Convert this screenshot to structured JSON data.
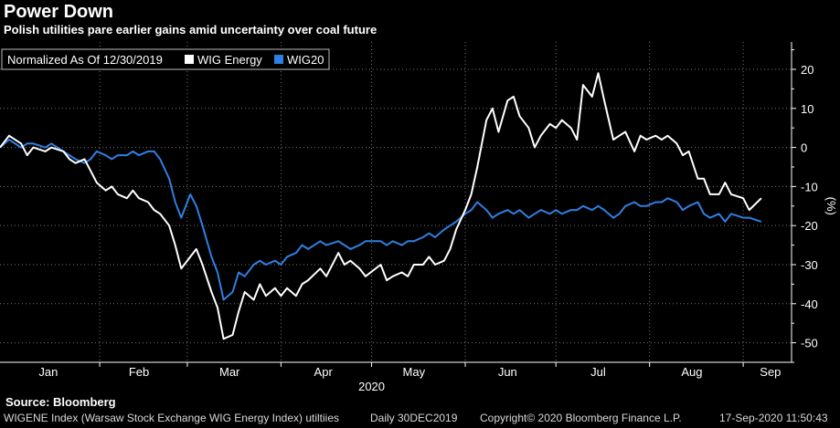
{
  "header": {
    "title": "Power Down",
    "subtitle": "Polish utilities pare earlier gains amid uncertainty over coal future"
  },
  "source": "Source: Bloomberg",
  "footer": {
    "description": "WIGENE Index (Warsaw Stock Exchange WIG Energy Index) utiltiies",
    "frequency": "Daily 30DEC2019",
    "copyright": "Copyright© 2020 Bloomberg Finance L.P.",
    "timestamp": "17-Sep-2020 11:50:43"
  },
  "colors": {
    "background": "#000000",
    "wig_energy": "#ffffff",
    "wig20": "#2f7fe0",
    "grid": "#777777"
  },
  "chart_data": {
    "type": "line",
    "title": "Power Down",
    "subtitle": "Polish utilities pare earlier gains amid uncertainty over coal future",
    "legend": {
      "header": "Normalized As Of 12/30/2019",
      "placement": "top-left"
    },
    "xlabel": "2020",
    "ylabel": "(%)",
    "y_axis_side": "right",
    "ylim": [
      -55,
      27
    ],
    "yticks": [
      20,
      10,
      0,
      -10,
      -20,
      -30,
      -40,
      -50
    ],
    "x_domain": [
      "2019-12-30",
      "2020-09-17"
    ],
    "x_ticks": [
      {
        "label": "Jan",
        "date": "2020-01-15"
      },
      {
        "label": "Feb",
        "date": "2020-02-14"
      },
      {
        "label": "Mar",
        "date": "2020-03-15"
      },
      {
        "label": "Apr",
        "date": "2020-04-15"
      },
      {
        "label": "May",
        "date": "2020-05-15"
      },
      {
        "label": "Jun",
        "date": "2020-06-15"
      },
      {
        "label": "Jul",
        "date": "2020-07-15"
      },
      {
        "label": "Aug",
        "date": "2020-08-15"
      },
      {
        "label": "Sep",
        "date": "2020-09-10"
      }
    ],
    "x_gridlines": [
      "2020-02-01",
      "2020-03-01",
      "2020-04-01",
      "2020-05-01",
      "2020-06-01",
      "2020-07-01",
      "2020-08-01",
      "2020-09-01"
    ],
    "grid": true,
    "series": [
      {
        "name": "WIG Energy",
        "color": "#ffffff",
        "points": [
          [
            "2019-12-30",
            0
          ],
          [
            "2020-01-02",
            3
          ],
          [
            "2020-01-06",
            1
          ],
          [
            "2020-01-08",
            -2
          ],
          [
            "2020-01-10",
            0
          ],
          [
            "2020-01-14",
            -1
          ],
          [
            "2020-01-16",
            0
          ],
          [
            "2020-01-20",
            -1
          ],
          [
            "2020-01-22",
            -3
          ],
          [
            "2020-01-24",
            -4
          ],
          [
            "2020-01-27",
            -3
          ],
          [
            "2020-01-29",
            -6
          ],
          [
            "2020-01-31",
            -9
          ],
          [
            "2020-02-03",
            -11
          ],
          [
            "2020-02-05",
            -10
          ],
          [
            "2020-02-07",
            -12
          ],
          [
            "2020-02-10",
            -13
          ],
          [
            "2020-02-12",
            -11
          ],
          [
            "2020-02-14",
            -13
          ],
          [
            "2020-02-17",
            -14
          ],
          [
            "2020-02-19",
            -16
          ],
          [
            "2020-02-21",
            -17
          ],
          [
            "2020-02-24",
            -20
          ],
          [
            "2020-02-26",
            -25
          ],
          [
            "2020-02-28",
            -31
          ],
          [
            "2020-03-02",
            -28
          ],
          [
            "2020-03-04",
            -26
          ],
          [
            "2020-03-06",
            -30
          ],
          [
            "2020-03-09",
            -37
          ],
          [
            "2020-03-11",
            -41
          ],
          [
            "2020-03-13",
            -49
          ],
          [
            "2020-03-16",
            -48
          ],
          [
            "2020-03-18",
            -42
          ],
          [
            "2020-03-20",
            -37
          ],
          [
            "2020-03-23",
            -39
          ],
          [
            "2020-03-25",
            -35
          ],
          [
            "2020-03-27",
            -38
          ],
          [
            "2020-03-30",
            -36
          ],
          [
            "2020-04-01",
            -38
          ],
          [
            "2020-04-03",
            -36
          ],
          [
            "2020-04-06",
            -38
          ],
          [
            "2020-04-08",
            -35
          ],
          [
            "2020-04-10",
            -34
          ],
          [
            "2020-04-14",
            -31
          ],
          [
            "2020-04-16",
            -33
          ],
          [
            "2020-04-20",
            -27
          ],
          [
            "2020-04-22",
            -30
          ],
          [
            "2020-04-24",
            -29
          ],
          [
            "2020-04-27",
            -31
          ],
          [
            "2020-04-29",
            -33
          ],
          [
            "2020-05-04",
            -30
          ],
          [
            "2020-05-06",
            -34
          ],
          [
            "2020-05-08",
            -33
          ],
          [
            "2020-05-11",
            -32
          ],
          [
            "2020-05-13",
            -33
          ],
          [
            "2020-05-15",
            -30
          ],
          [
            "2020-05-18",
            -30
          ],
          [
            "2020-05-20",
            -28
          ],
          [
            "2020-05-22",
            -30
          ],
          [
            "2020-05-25",
            -29
          ],
          [
            "2020-05-27",
            -26
          ],
          [
            "2020-05-29",
            -21
          ],
          [
            "2020-06-01",
            -16
          ],
          [
            "2020-06-03",
            -12
          ],
          [
            "2020-06-05",
            -5
          ],
          [
            "2020-06-08",
            7
          ],
          [
            "2020-06-10",
            10
          ],
          [
            "2020-06-12",
            4
          ],
          [
            "2020-06-15",
            12
          ],
          [
            "2020-06-17",
            13
          ],
          [
            "2020-06-19",
            8
          ],
          [
            "2020-06-22",
            5
          ],
          [
            "2020-06-24",
            0
          ],
          [
            "2020-06-26",
            3
          ],
          [
            "2020-06-29",
            6
          ],
          [
            "2020-07-01",
            5
          ],
          [
            "2020-07-03",
            7
          ],
          [
            "2020-07-06",
            5
          ],
          [
            "2020-07-08",
            2
          ],
          [
            "2020-07-10",
            16
          ],
          [
            "2020-07-13",
            13
          ],
          [
            "2020-07-15",
            19
          ],
          [
            "2020-07-17",
            12
          ],
          [
            "2020-07-20",
            2
          ],
          [
            "2020-07-22",
            3
          ],
          [
            "2020-07-24",
            4
          ],
          [
            "2020-07-27",
            -1
          ],
          [
            "2020-07-29",
            3
          ],
          [
            "2020-07-31",
            2
          ],
          [
            "2020-08-03",
            3
          ],
          [
            "2020-08-05",
            2
          ],
          [
            "2020-08-07",
            3
          ],
          [
            "2020-08-10",
            1
          ],
          [
            "2020-08-12",
            -2
          ],
          [
            "2020-08-14",
            -1
          ],
          [
            "2020-08-17",
            -8
          ],
          [
            "2020-08-19",
            -8
          ],
          [
            "2020-08-21",
            -12
          ],
          [
            "2020-08-24",
            -12
          ],
          [
            "2020-08-26",
            -9
          ],
          [
            "2020-08-28",
            -12
          ],
          [
            "2020-09-01",
            -13
          ],
          [
            "2020-09-03",
            -16
          ],
          [
            "2020-09-07",
            -13
          ]
        ]
      },
      {
        "name": "WIG20",
        "color": "#2f7fe0",
        "points": [
          [
            "2019-12-30",
            0
          ],
          [
            "2020-01-02",
            2
          ],
          [
            "2020-01-06",
            0
          ],
          [
            "2020-01-08",
            1
          ],
          [
            "2020-01-10",
            1
          ],
          [
            "2020-01-14",
            0
          ],
          [
            "2020-01-16",
            1
          ],
          [
            "2020-01-20",
            -1
          ],
          [
            "2020-01-22",
            -2
          ],
          [
            "2020-01-24",
            -3
          ],
          [
            "2020-01-27",
            -4
          ],
          [
            "2020-01-29",
            -3
          ],
          [
            "2020-01-31",
            -1
          ],
          [
            "2020-02-03",
            -2
          ],
          [
            "2020-02-05",
            -3
          ],
          [
            "2020-02-07",
            -2
          ],
          [
            "2020-02-10",
            -2
          ],
          [
            "2020-02-12",
            -1
          ],
          [
            "2020-02-14",
            -2
          ],
          [
            "2020-02-17",
            -1
          ],
          [
            "2020-02-19",
            -1
          ],
          [
            "2020-02-21",
            -3
          ],
          [
            "2020-02-24",
            -8
          ],
          [
            "2020-02-26",
            -14
          ],
          [
            "2020-02-28",
            -18
          ],
          [
            "2020-03-02",
            -12
          ],
          [
            "2020-03-04",
            -15
          ],
          [
            "2020-03-06",
            -20
          ],
          [
            "2020-03-09",
            -28
          ],
          [
            "2020-03-11",
            -32
          ],
          [
            "2020-03-13",
            -39
          ],
          [
            "2020-03-16",
            -37
          ],
          [
            "2020-03-18",
            -32
          ],
          [
            "2020-03-20",
            -33
          ],
          [
            "2020-03-23",
            -30
          ],
          [
            "2020-03-25",
            -29
          ],
          [
            "2020-03-27",
            -30
          ],
          [
            "2020-03-30",
            -29
          ],
          [
            "2020-04-01",
            -30
          ],
          [
            "2020-04-03",
            -28
          ],
          [
            "2020-04-06",
            -27
          ],
          [
            "2020-04-08",
            -25
          ],
          [
            "2020-04-10",
            -26
          ],
          [
            "2020-04-14",
            -24
          ],
          [
            "2020-04-16",
            -25
          ],
          [
            "2020-04-20",
            -24
          ],
          [
            "2020-04-22",
            -25
          ],
          [
            "2020-04-24",
            -26
          ],
          [
            "2020-04-27",
            -25
          ],
          [
            "2020-04-29",
            -24
          ],
          [
            "2020-05-04",
            -24
          ],
          [
            "2020-05-06",
            -25
          ],
          [
            "2020-05-08",
            -24
          ],
          [
            "2020-05-11",
            -25
          ],
          [
            "2020-05-13",
            -24
          ],
          [
            "2020-05-15",
            -24
          ],
          [
            "2020-05-18",
            -23
          ],
          [
            "2020-05-20",
            -22
          ],
          [
            "2020-05-22",
            -23
          ],
          [
            "2020-05-25",
            -21
          ],
          [
            "2020-05-27",
            -20
          ],
          [
            "2020-05-29",
            -19
          ],
          [
            "2020-06-01",
            -17
          ],
          [
            "2020-06-03",
            -16
          ],
          [
            "2020-06-05",
            -14
          ],
          [
            "2020-06-08",
            -16
          ],
          [
            "2020-06-10",
            -18
          ],
          [
            "2020-06-12",
            -17
          ],
          [
            "2020-06-15",
            -16
          ],
          [
            "2020-06-17",
            -17
          ],
          [
            "2020-06-19",
            -16
          ],
          [
            "2020-06-22",
            -18
          ],
          [
            "2020-06-24",
            -17
          ],
          [
            "2020-06-26",
            -16
          ],
          [
            "2020-06-29",
            -17
          ],
          [
            "2020-07-01",
            -16
          ],
          [
            "2020-07-03",
            -17
          ],
          [
            "2020-07-06",
            -16
          ],
          [
            "2020-07-08",
            -16
          ],
          [
            "2020-07-10",
            -15
          ],
          [
            "2020-07-13",
            -16
          ],
          [
            "2020-07-15",
            -15
          ],
          [
            "2020-07-17",
            -16
          ],
          [
            "2020-07-20",
            -18
          ],
          [
            "2020-07-22",
            -17
          ],
          [
            "2020-07-24",
            -15
          ],
          [
            "2020-07-27",
            -14
          ],
          [
            "2020-07-29",
            -15
          ],
          [
            "2020-07-31",
            -15
          ],
          [
            "2020-08-03",
            -14
          ],
          [
            "2020-08-05",
            -14
          ],
          [
            "2020-08-07",
            -13
          ],
          [
            "2020-08-10",
            -14
          ],
          [
            "2020-08-12",
            -16
          ],
          [
            "2020-08-14",
            -15
          ],
          [
            "2020-08-17",
            -14
          ],
          [
            "2020-08-19",
            -17
          ],
          [
            "2020-08-21",
            -18
          ],
          [
            "2020-08-24",
            -17
          ],
          [
            "2020-08-26",
            -19
          ],
          [
            "2020-08-28",
            -17
          ],
          [
            "2020-09-01",
            -18
          ],
          [
            "2020-09-03",
            -18
          ],
          [
            "2020-09-07",
            -19
          ]
        ]
      }
    ]
  }
}
